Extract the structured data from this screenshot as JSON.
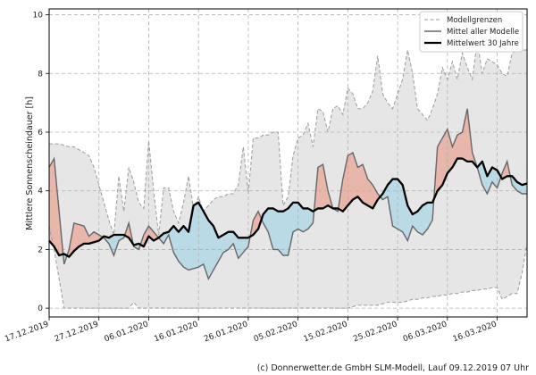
{
  "chart_data": {
    "type": "area",
    "ylabel": "Mittlere Sonnenscheindauer [h]",
    "ylim": [
      -0.3,
      10.2
    ],
    "yticks": [
      0,
      2,
      4,
      6,
      8,
      10
    ],
    "xlim": [
      "2019-12-17",
      "2020-03-22"
    ],
    "xticks": [
      "17.12.2019",
      "27.12.2019",
      "06.01.2020",
      "16.01.2020",
      "26.01.2020",
      "05.02.2020",
      "15.02.2020",
      "25.02.2020",
      "06.03.2020",
      "16.03.2020"
    ],
    "grid": true,
    "legend_position": "top-right",
    "legend": [
      "Modellgrenzen",
      "Mittel aller Modelle",
      "Mittelwert 30 Jahre"
    ],
    "colors": {
      "range_fill": "#e6e6e6",
      "bounds_line": "#9a9a9a",
      "mean_line": "#666666",
      "clim_line": "#000000",
      "above_fill": "#e8b0a4",
      "below_fill": "#b5d8e6"
    },
    "dates": [
      "2019-12-17",
      "2019-12-18",
      "2019-12-19",
      "2019-12-20",
      "2019-12-21",
      "2019-12-22",
      "2019-12-23",
      "2019-12-24",
      "2019-12-25",
      "2019-12-26",
      "2019-12-27",
      "2019-12-28",
      "2019-12-29",
      "2019-12-30",
      "2019-12-31",
      "2020-01-01",
      "2020-01-02",
      "2020-01-03",
      "2020-01-04",
      "2020-01-05",
      "2020-01-06",
      "2020-01-07",
      "2020-01-08",
      "2020-01-09",
      "2020-01-10",
      "2020-01-11",
      "2020-01-12",
      "2020-01-13",
      "2020-01-14",
      "2020-01-15",
      "2020-01-16",
      "2020-01-17",
      "2020-01-18",
      "2020-01-19",
      "2020-01-20",
      "2020-01-21",
      "2020-01-22",
      "2020-01-23",
      "2020-01-24",
      "2020-01-25",
      "2020-01-26",
      "2020-01-27",
      "2020-01-28",
      "2020-01-29",
      "2020-01-30",
      "2020-01-31",
      "2020-02-01",
      "2020-02-02",
      "2020-02-03",
      "2020-02-04",
      "2020-02-05",
      "2020-02-06",
      "2020-02-07",
      "2020-02-08",
      "2020-02-09",
      "2020-02-10",
      "2020-02-11",
      "2020-02-12",
      "2020-02-13",
      "2020-02-14",
      "2020-02-15",
      "2020-02-16",
      "2020-02-17",
      "2020-02-18",
      "2020-02-19",
      "2020-02-20",
      "2020-02-21",
      "2020-02-22",
      "2020-02-23",
      "2020-02-24",
      "2020-02-25",
      "2020-02-26",
      "2020-02-27",
      "2020-02-28",
      "2020-02-29",
      "2020-03-01",
      "2020-03-02",
      "2020-03-03",
      "2020-03-04",
      "2020-03-05",
      "2020-03-06",
      "2020-03-07",
      "2020-03-08",
      "2020-03-09",
      "2020-03-10",
      "2020-03-11",
      "2020-03-12",
      "2020-03-13",
      "2020-03-14",
      "2020-03-15",
      "2020-03-16",
      "2020-03-17",
      "2020-03-18",
      "2020-03-19",
      "2020-03-20",
      "2020-03-21",
      "2020-03-22"
    ],
    "series": [
      {
        "name": "Modellgrenzen max",
        "values": [
          5.6,
          5.6,
          5.6,
          5.55,
          5.5,
          5.5,
          5.4,
          5.3,
          5.2,
          4.8,
          4.2,
          3.6,
          3.0,
          2.5,
          4.5,
          3.3,
          4.8,
          4.3,
          3.6,
          3.4,
          5.7,
          4.0,
          2.5,
          4.1,
          4.1,
          3.3,
          2.9,
          3.6,
          4.5,
          3.4,
          3.8,
          3.3,
          3.5,
          3.7,
          3.8,
          3.8,
          3.9,
          3.9,
          4.2,
          5.5,
          3.9,
          5.8,
          5.8,
          5.9,
          5.9,
          6.0,
          6.0,
          3.5,
          3.8,
          5.2,
          5.8,
          5.9,
          6.3,
          5.5,
          6.8,
          6.7,
          6.0,
          6.8,
          6.9,
          6.6,
          7.5,
          7.3,
          6.8,
          6.8,
          7.0,
          7.4,
          8.6,
          7.3,
          7.0,
          6.8,
          7.3,
          7.8,
          8.8,
          8.0,
          6.8,
          6.6,
          6.4,
          6.8,
          7.3,
          8.2,
          7.8,
          8.4,
          7.8,
          8.7,
          8.2,
          7.8,
          9.1,
          8.0,
          8.5,
          8.4,
          8.3,
          8.0,
          7.9,
          8.7,
          8.8,
          8.8,
          8.8
        ]
      },
      {
        "name": "Modellgrenzen min",
        "values": [
          2.8,
          2.0,
          1.0,
          0.0,
          0.0,
          0.0,
          0.0,
          0.0,
          0.0,
          0.0,
          0.0,
          0.0,
          0.0,
          0.0,
          0.0,
          0.0,
          0.0,
          0.2,
          0.0,
          0.0,
          0.0,
          0.0,
          0.0,
          0.0,
          0.0,
          0.0,
          0.0,
          0.0,
          0.0,
          0.0,
          0.0,
          0.0,
          0.0,
          0.0,
          0.0,
          0.0,
          0.0,
          0.0,
          0.0,
          0.0,
          0.0,
          0.0,
          0.0,
          0.0,
          0.0,
          0.0,
          0.0,
          0.0,
          0.0,
          0.0,
          0.0,
          0.0,
          0.0,
          0.0,
          0.0,
          0.0,
          0.0,
          0.0,
          0.0,
          0.0,
          0.0,
          0.05,
          0.1,
          0.1,
          0.1,
          0.1,
          0.1,
          0.15,
          0.2,
          0.2,
          0.2,
          0.2,
          0.25,
          0.3,
          0.3,
          0.35,
          0.35,
          0.4,
          0.4,
          0.45,
          0.45,
          0.5,
          0.5,
          0.55,
          0.55,
          0.6,
          0.6,
          0.65,
          0.65,
          0.7,
          0.7,
          0.3,
          0.4,
          0.5,
          0.5,
          1.2,
          2.2
        ]
      },
      {
        "name": "Mittel aller Modelle",
        "values": [
          4.8,
          5.1,
          3.3,
          1.5,
          2.0,
          2.9,
          2.85,
          2.8,
          2.45,
          2.6,
          2.5,
          2.4,
          2.2,
          1.8,
          2.3,
          2.4,
          2.9,
          2.1,
          2.0,
          2.5,
          2.8,
          2.6,
          2.4,
          2.2,
          2.5,
          1.9,
          1.6,
          1.4,
          1.3,
          1.35,
          1.4,
          1.5,
          1.0,
          1.3,
          1.6,
          1.9,
          2.0,
          2.2,
          1.7,
          1.9,
          2.1,
          3.0,
          3.3,
          2.9,
          2.6,
          2.0,
          2.0,
          1.8,
          1.8,
          2.6,
          2.7,
          2.6,
          2.7,
          2.9,
          4.8,
          4.9,
          4.0,
          3.4,
          3.3,
          4.4,
          5.2,
          5.3,
          4.8,
          4.9,
          4.4,
          4.2,
          3.9,
          3.7,
          3.8,
          2.8,
          2.7,
          2.6,
          2.3,
          2.8,
          2.6,
          2.5,
          2.7,
          3.0,
          5.5,
          5.8,
          6.1,
          5.5,
          5.9,
          6.0,
          6.8,
          5.3,
          4.8,
          4.2,
          3.9,
          4.3,
          4.1,
          4.6,
          5.0,
          4.2,
          4.0,
          3.9,
          3.9
        ]
      },
      {
        "name": "Mittelwert 30 Jahre",
        "values": [
          2.3,
          2.1,
          1.8,
          1.85,
          1.75,
          1.95,
          2.1,
          2.2,
          2.2,
          2.25,
          2.3,
          2.45,
          2.4,
          2.5,
          2.5,
          2.5,
          2.4,
          2.15,
          2.2,
          2.1,
          2.45,
          2.3,
          2.4,
          2.55,
          2.6,
          2.8,
          2.6,
          2.8,
          2.6,
          3.5,
          3.6,
          3.3,
          3.0,
          2.8,
          2.4,
          2.5,
          2.6,
          2.6,
          2.4,
          2.4,
          2.4,
          2.5,
          2.7,
          3.2,
          3.4,
          3.4,
          3.3,
          3.3,
          3.4,
          3.6,
          3.6,
          3.4,
          3.4,
          3.3,
          3.4,
          3.4,
          3.5,
          3.4,
          3.4,
          3.3,
          3.5,
          3.7,
          3.8,
          3.6,
          3.5,
          3.4,
          3.7,
          3.9,
          4.2,
          4.4,
          4.4,
          4.2,
          3.5,
          3.2,
          3.3,
          3.5,
          3.6,
          3.6,
          4.0,
          4.2,
          4.6,
          4.8,
          5.1,
          5.1,
          5.0,
          5.0,
          4.8,
          5.0,
          4.5,
          4.8,
          4.7,
          4.4,
          4.5,
          4.5,
          4.3,
          4.2,
          4.25
        ]
      }
    ]
  },
  "footer": {
    "credit": "(c) Donnerwetter.de GmbH SLM-Modell, Lauf 09.12.2019 07 Uhr"
  }
}
